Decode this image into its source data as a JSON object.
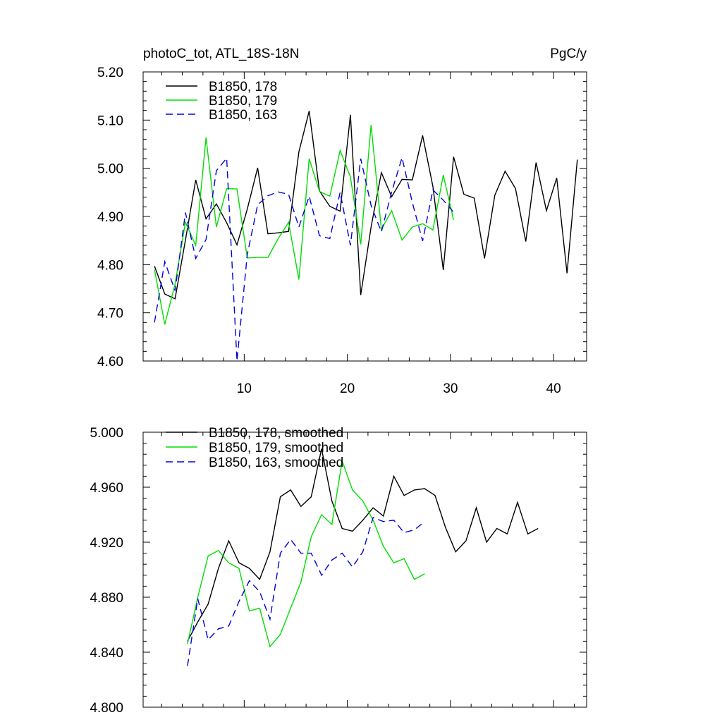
{
  "chart_data": [
    {
      "type": "line",
      "title_left": "photoC_tot, ATL_18S-18N",
      "title_right": "PgC/y",
      "ylim": [
        4.6,
        5.2
      ],
      "xlim": [
        0.2,
        43.2
      ],
      "y_ticks": [
        "4.60",
        "4.70",
        "4.80",
        "4.90",
        "5.00",
        "5.10",
        "5.20"
      ],
      "x_ticks": [
        10,
        20,
        30,
        40
      ],
      "x_tick_labels": [
        "10",
        "20",
        "30",
        "40"
      ],
      "legend": [
        "B1850, 178",
        "B1850, 179",
        "B1850, 163"
      ],
      "series": [
        {
          "name": "B1850, 178",
          "color": "#000000",
          "dash": "solid",
          "x_start": 1.3,
          "values": [
            4.797,
            4.739,
            4.729,
            4.851,
            4.976,
            4.895,
            4.926,
            4.887,
            4.841,
            4.915,
            5.001,
            4.864,
            4.866,
            4.869,
            5.034,
            5.119,
            4.953,
            4.921,
            4.911,
            5.111,
            4.737,
            4.878,
            4.991,
            4.941,
            4.977,
            4.976,
            5.068,
            4.962,
            4.789,
            5.024,
            4.946,
            4.938,
            4.813,
            4.944,
            4.994,
            4.958,
            4.848,
            5.012,
            4.912,
            4.98,
            4.782,
            5.018
          ]
        },
        {
          "name": "B1850, 179",
          "color": "#00dd00",
          "dash": "solid",
          "x_start": 1.3,
          "values": [
            4.79,
            4.676,
            4.76,
            4.888,
            4.84,
            5.064,
            4.878,
            4.958,
            4.957,
            4.814,
            4.815,
            4.815,
            4.854,
            4.888,
            4.769,
            5.02,
            4.952,
            4.942,
            5.037,
            4.982,
            4.842,
            5.09,
            4.873,
            4.912,
            4.851,
            4.878,
            4.885,
            4.872,
            4.986,
            4.893
          ]
        },
        {
          "name": "B1850, 163",
          "color": "#0000dd",
          "dash": "dashed",
          "x_start": 1.3,
          "values": [
            4.68,
            4.806,
            4.746,
            4.908,
            4.813,
            4.852,
            4.995,
            5.021,
            4.6,
            4.821,
            4.924,
            4.943,
            4.951,
            4.946,
            4.878,
            4.942,
            4.86,
            4.854,
            4.95,
            4.84,
            5.02,
            4.923,
            4.868,
            4.951,
            5.022,
            4.929,
            4.849,
            4.955,
            4.934,
            4.909
          ]
        }
      ]
    },
    {
      "type": "line",
      "ylim": [
        4.8,
        5.0
      ],
      "xlim": [
        0.2,
        43.2
      ],
      "y_ticks": [
        "4.800",
        "4.840",
        "4.880",
        "4.920",
        "4.960",
        "5.000"
      ],
      "x_ticks": [
        10,
        20,
        30,
        40
      ],
      "legend": [
        "B1850, 178, smoothed",
        "B1850, 179, smoothed",
        "B1850, 163, smoothed"
      ],
      "series": [
        {
          "name": "B1850, 178, smoothed",
          "color": "#000000",
          "dash": "solid",
          "x_start": 4.5,
          "values": [
            4.848,
            4.862,
            4.875,
            4.901,
            4.921,
            4.905,
            4.901,
            4.893,
            4.913,
            4.953,
            4.958,
            4.946,
            4.953,
            4.988,
            4.95,
            4.93,
            4.928,
            4.936,
            4.945,
            4.939,
            4.968,
            4.954,
            4.958,
            4.959,
            4.954,
            4.931,
            4.913,
            4.921,
            4.945,
            4.92,
            4.93,
            4.926,
            4.949,
            4.926,
            4.93
          ]
        },
        {
          "name": "B1850, 179, smoothed",
          "color": "#00dd00",
          "dash": "solid",
          "x_start": 4.5,
          "values": [
            4.846,
            4.88,
            4.91,
            4.914,
            4.905,
            4.901,
            4.87,
            4.872,
            4.844,
            4.853,
            4.872,
            4.891,
            4.924,
            4.94,
            4.933,
            4.979,
            4.958,
            4.95,
            4.936,
            4.917,
            4.905,
            4.908,
            4.893,
            4.897
          ]
        },
        {
          "name": "B1850, 163, smoothed",
          "color": "#0000dd",
          "dash": "dashed",
          "x_start": 4.5,
          "values": [
            4.83,
            4.879,
            4.849,
            4.857,
            4.859,
            4.877,
            4.892,
            4.884,
            4.864,
            4.912,
            4.922,
            4.912,
            4.912,
            4.896,
            4.907,
            4.912,
            4.902,
            4.913,
            4.938,
            4.935,
            4.936,
            4.927,
            4.929,
            4.935
          ]
        }
      ]
    }
  ]
}
